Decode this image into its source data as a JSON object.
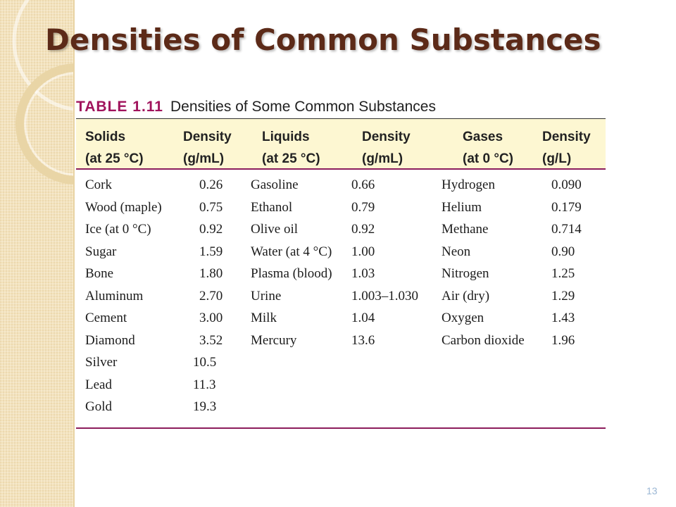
{
  "slide": {
    "title": "Densities of Common Substances",
    "page_number": "13"
  },
  "table": {
    "number": "TABLE 1.11",
    "caption": "Densities of Some Common Substances",
    "headers": [
      {
        "line1": "Solids",
        "line2": "(at 25 °C)"
      },
      {
        "line1": "Density",
        "line2": "(g/mL)"
      },
      {
        "line1": "Liquids",
        "line2": "(at 25 °C)"
      },
      {
        "line1": "Density",
        "line2": "(g/mL)"
      },
      {
        "line1": "Gases",
        "line2": "(at 0 °C)"
      },
      {
        "line1": "Density",
        "line2": "(g/L)"
      }
    ],
    "solids": [
      {
        "name": "Cork",
        "density": "0.26"
      },
      {
        "name": "Wood (maple)",
        "density": "0.75"
      },
      {
        "name": "Ice (at 0 °C)",
        "density": "0.92"
      },
      {
        "name": "Sugar",
        "density": "1.59"
      },
      {
        "name": "Bone",
        "density": "1.80"
      },
      {
        "name": "Aluminum",
        "density": "2.70"
      },
      {
        "name": "Cement",
        "density": "3.00"
      },
      {
        "name": "Diamond",
        "density": "3.52"
      },
      {
        "name": "Silver",
        "density": "10.5"
      },
      {
        "name": "Lead",
        "density": "11.3"
      },
      {
        "name": "Gold",
        "density": "19.3"
      }
    ],
    "liquids": [
      {
        "name": "Gasoline",
        "density": "0.66"
      },
      {
        "name": "Ethanol",
        "density": "0.79"
      },
      {
        "name": "Olive oil",
        "density": "0.92"
      },
      {
        "name": "Water (at 4 °C)",
        "density": "1.00"
      },
      {
        "name": "Plasma (blood)",
        "density": "1.03"
      },
      {
        "name": "Urine",
        "density": "1.003–1.030"
      },
      {
        "name": "Milk",
        "density": "1.04"
      },
      {
        "name": "Mercury",
        "density": "13.6"
      }
    ],
    "gases": [
      {
        "name": "Hydrogen",
        "density": "0.090"
      },
      {
        "name": "Helium",
        "density": "0.179"
      },
      {
        "name": "Methane",
        "density": "0.714"
      },
      {
        "name": "Neon",
        "density": "0.90"
      },
      {
        "name": "Nitrogen",
        "density": "1.25"
      },
      {
        "name": "Air (dry)",
        "density": "1.29"
      },
      {
        "name": "Oxygen",
        "density": "1.43"
      },
      {
        "name": "Carbon dioxide",
        "density": "1.96"
      }
    ]
  },
  "colors": {
    "title": "#5c2a18",
    "table_number": "#a0135c",
    "rule": "#8c1d5c",
    "header_bg": "#fdf7d2",
    "side_panel": "#f4e3bd"
  }
}
